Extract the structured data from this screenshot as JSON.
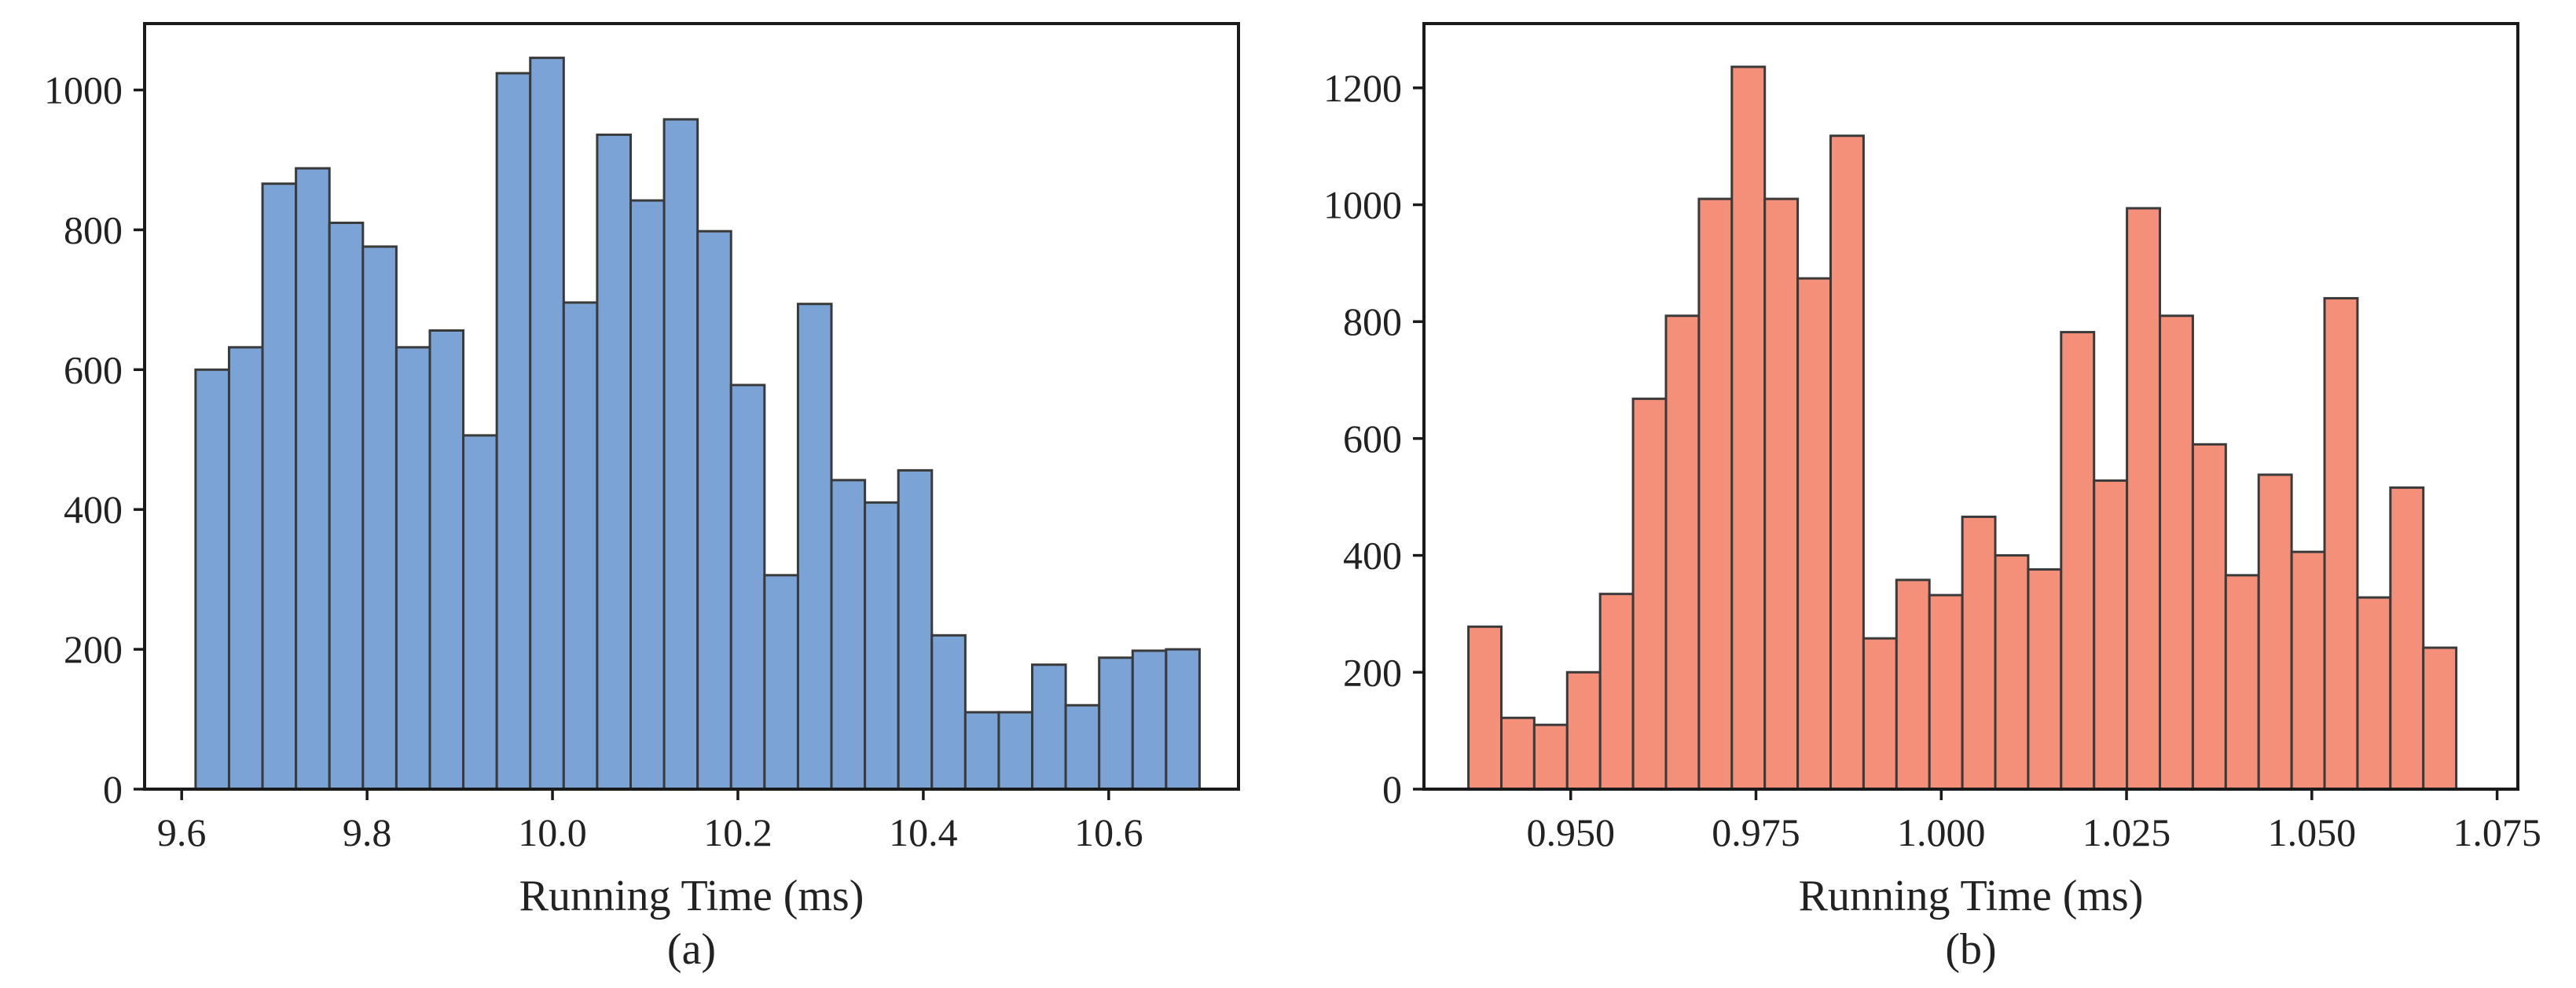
{
  "chart_data": [
    {
      "type": "bar",
      "subtype": "histogram",
      "caption": "(a)",
      "xlabel": "Running Time (ms)",
      "ylabel": "",
      "color": "#7ba3d6",
      "edge_color": "#3a3a3a",
      "xlim": [
        9.56,
        10.74
      ],
      "ylim": [
        0,
        1095
      ],
      "xticks": [
        9.6,
        9.8,
        10.0,
        10.2,
        10.4,
        10.6
      ],
      "xtick_labels": [
        "9.6",
        "9.8",
        "10.0",
        "10.2",
        "10.4",
        "10.6"
      ],
      "yticks": [
        0,
        200,
        400,
        600,
        800,
        1000
      ],
      "ytick_labels": [
        "0",
        "200",
        "400",
        "600",
        "800",
        "1000"
      ],
      "bin_start": 9.615,
      "bin_width": 0.0361,
      "values": [
        600,
        632,
        866,
        888,
        810,
        776,
        632,
        656,
        506,
        1024,
        1046,
        696,
        936,
        842,
        958,
        798,
        578,
        306,
        694,
        442,
        410,
        456,
        220,
        110,
        110,
        178,
        120,
        188,
        198,
        200
      ]
    },
    {
      "type": "bar",
      "subtype": "histogram",
      "caption": "(b)",
      "xlabel": "Running Time (ms)",
      "ylabel": "",
      "color": "#f4907a",
      "edge_color": "#3a3a3a",
      "xlim": [
        0.9302,
        1.0778
      ],
      "ylim": [
        0,
        1310
      ],
      "xticks": [
        0.95,
        0.975,
        1.0,
        1.025,
        1.05,
        1.075
      ],
      "xtick_labels": [
        "0.950",
        "0.975",
        "1.000",
        "1.025",
        "1.050",
        "1.075"
      ],
      "yticks": [
        0,
        200,
        400,
        600,
        800,
        1000,
        1200
      ],
      "ytick_labels": [
        "0",
        "200",
        "400",
        "600",
        "800",
        "1000",
        "1200"
      ],
      "bin_start": 0.9362,
      "bin_width": 0.004443,
      "values": [
        278,
        122,
        110,
        200,
        334,
        668,
        810,
        1010,
        1236,
        1010,
        874,
        1118,
        258,
        358,
        332,
        466,
        400,
        376,
        782,
        528,
        994,
        810,
        590,
        366,
        538,
        406,
        840,
        328,
        516,
        242
      ]
    }
  ]
}
